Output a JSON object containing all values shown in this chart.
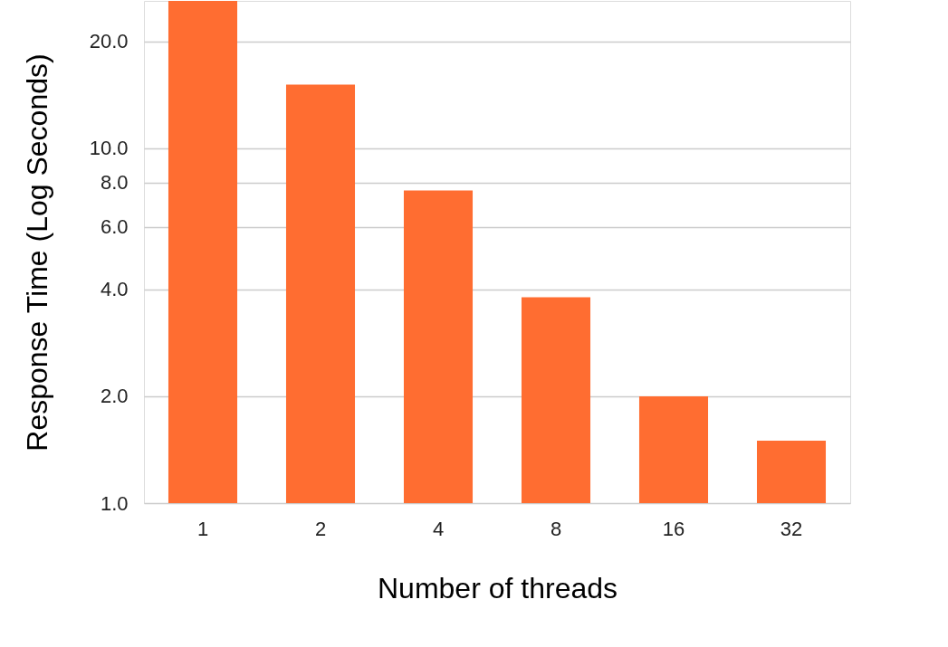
{
  "chart_data": {
    "type": "bar",
    "xlabel": "Number of threads",
    "ylabel": "Response Time (Log Seconds)",
    "categories": [
      "1",
      "2",
      "4",
      "8",
      "16",
      "32"
    ],
    "values": [
      26,
      15.1,
      7.6,
      3.8,
      2.0,
      1.5
    ],
    "color": "#ff6d31",
    "log": true,
    "grid": "y",
    "ylim": [
      1,
      26
    ],
    "yticks": [
      {
        "value": 1,
        "label": "1.0"
      },
      {
        "value": 2,
        "label": "2.0"
      },
      {
        "value": 4,
        "label": "4.0"
      },
      {
        "value": 6,
        "label": "6.0"
      },
      {
        "value": 8,
        "label": "8.0"
      },
      {
        "value": 10,
        "label": "10.0"
      },
      {
        "value": 20,
        "label": "20.0"
      }
    ]
  }
}
